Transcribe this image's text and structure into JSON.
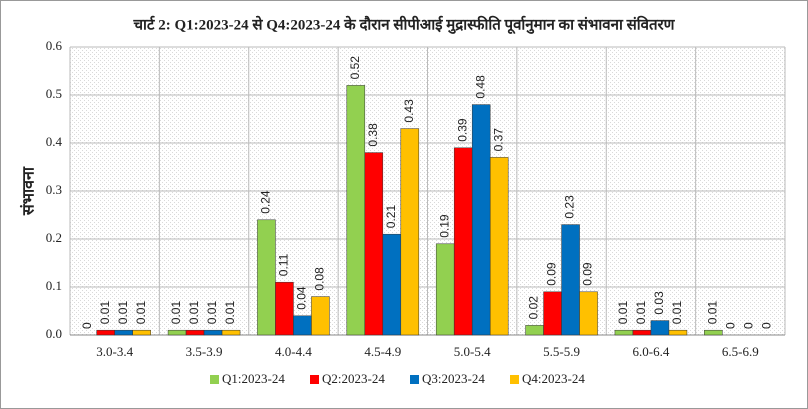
{
  "chart_data": {
    "type": "bar",
    "title": "चार्ट 2: Q1:2023-24 से Q4:2023-24 के दौरान सीपीआई मुद्रास्फीति पूर्वानुमान का संभावना संवितरण",
    "y_label": "संभावना",
    "categories": [
      "3.0-3.4",
      "3.5-3.9",
      "4.0-4.4",
      "4.5-4.9",
      "5.0-5.4",
      "5.5-5.9",
      "6.0-6.4",
      "6.5-6.9"
    ],
    "series": [
      {
        "name": "Q1:2023-24",
        "color": "#92d050",
        "values": [
          0,
          0.01,
          0.24,
          0.52,
          0.19,
          0.02,
          0.01,
          0.01
        ]
      },
      {
        "name": "Q2:2023-24",
        "color": "#ff0000",
        "values": [
          0.01,
          0.01,
          0.11,
          0.38,
          0.39,
          0.09,
          0.01,
          0
        ]
      },
      {
        "name": "Q3:2023-24",
        "color": "#0070c0",
        "values": [
          0.01,
          0.01,
          0.04,
          0.21,
          0.48,
          0.23,
          0.03,
          0
        ]
      },
      {
        "name": "Q4:2023-24",
        "color": "#ffc000",
        "values": [
          0.01,
          0.01,
          0.08,
          0.43,
          0.37,
          0.09,
          0.01,
          0
        ]
      }
    ],
    "ylim": [
      0,
      0.6
    ],
    "yticks": [
      {
        "value": 0,
        "label": "0.0"
      },
      0.1,
      0.2,
      0.3,
      0.4,
      0.5,
      0.6
    ],
    "grid": true,
    "legend": "bottom"
  }
}
